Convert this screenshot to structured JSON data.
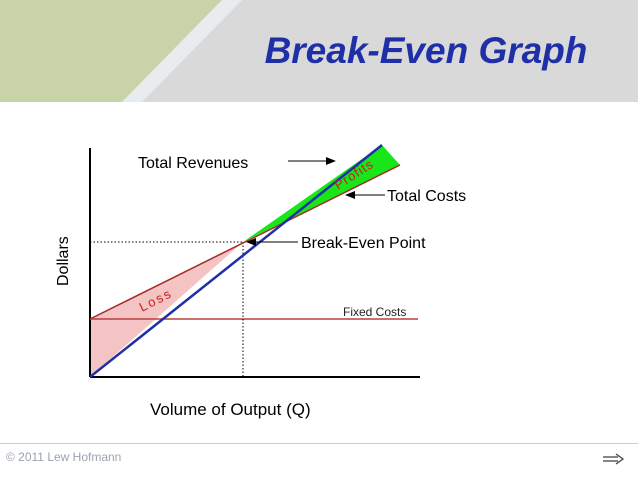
{
  "title": "Break-Even Graph",
  "copyright": "© 2011 Lew Hofmann",
  "labels": {
    "total_revenues": "Total Revenues",
    "profits": "Profits",
    "total_costs": "Total Costs",
    "break_even_point": "Break-Even Point",
    "loss": "Loss",
    "fixed_costs": "Fixed Costs",
    "y_axis": "Dollars",
    "x_axis": "Volume of Output (Q)"
  },
  "colors": {
    "title": "#1f2fa8",
    "revenue_line": "#1f2fa8",
    "cost_line": "#a52a2a",
    "profit_fill": "#19e619",
    "loss_fill": "#f4c4c4",
    "fixed_cost_line": "#b84040",
    "header_green": "#c8d4a8",
    "header_gray": "#d9d9d9"
  },
  "icons": {
    "next": "right-arrow-icon"
  }
}
